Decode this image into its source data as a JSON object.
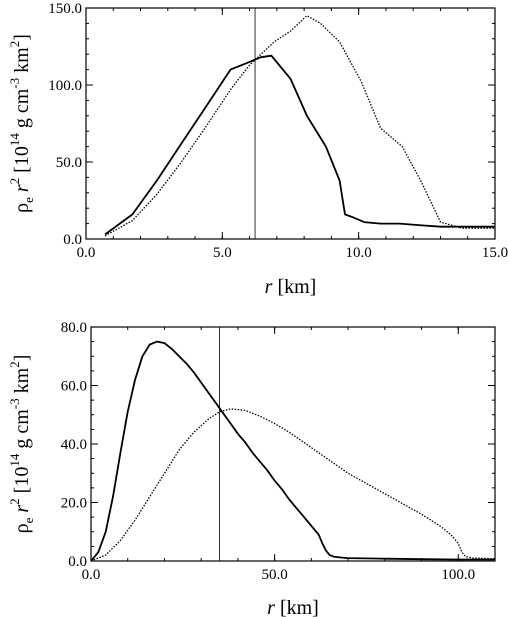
{
  "chart_data": [
    {
      "type": "line",
      "xlabel_italic": "r",
      "xlabel_rest": " [km]",
      "ylabel": {
        "rho": "ρ",
        "sub_e": "e",
        "r": " r",
        "sup2": "2",
        "open": " [10",
        "sup14": "14",
        "gcm": " g cm",
        "supm3": "-3",
        "km": " km",
        "close": "]"
      },
      "xlim": [
        0,
        15
      ],
      "ylim": [
        0,
        150
      ],
      "xticks": [
        {
          "v": 0,
          "label": "0.0"
        },
        {
          "v": 5,
          "label": "5.0"
        },
        {
          "v": 10,
          "label": "10.0"
        },
        {
          "v": 15,
          "label": "15.0"
        }
      ],
      "yticks": [
        {
          "v": 0,
          "label": "0.0"
        },
        {
          "v": 50,
          "label": "50.0"
        },
        {
          "v": 100,
          "label": "100.0"
        },
        {
          "v": 150,
          "label": "150.0"
        }
      ],
      "xminor": 1,
      "yminor": 10,
      "vline": 6.2,
      "series": [
        {
          "style": "solid",
          "x": [
            0.7,
            1.7,
            2.6,
            3.5,
            4.4,
            5.3,
            6.0,
            6.4,
            6.8,
            7.5,
            8.1,
            8.8,
            9.3,
            9.5,
            9.8,
            10.2,
            10.8,
            11.5,
            12.2,
            13.0,
            14.0,
            15.0
          ],
          "y": [
            3,
            16,
            38,
            62,
            86,
            110,
            115,
            118,
            119,
            104,
            80,
            60,
            38,
            16,
            14,
            11,
            10,
            10,
            9,
            8,
            8,
            8
          ]
        },
        {
          "style": "dotted",
          "x": [
            0.7,
            1.7,
            2.6,
            3.5,
            4.4,
            5.3,
            6.0,
            6.9,
            7.5,
            8.1,
            8.6,
            9.3,
            10.1,
            10.8,
            11.6,
            12.3,
            13.0,
            13.8,
            15.0
          ],
          "y": [
            2,
            12,
            29,
            50,
            73,
            97,
            113,
            128,
            135,
            145,
            140,
            128,
            102,
            72,
            60,
            37,
            11,
            7,
            7
          ]
        }
      ]
    },
    {
      "type": "line",
      "xlabel_italic": "r",
      "xlabel_rest": " [km]",
      "ylabel": {
        "rho": "ρ",
        "sub_e": "e",
        "r": " r",
        "sup2": "2",
        "open": " [10",
        "sup14": "14",
        "gcm": " g cm",
        "supm3": "-3",
        "km": " km",
        "close": "]"
      },
      "xlim": [
        0,
        110
      ],
      "ylim": [
        0,
        80
      ],
      "xticks": [
        {
          "v": 0,
          "label": "0.0"
        },
        {
          "v": 50,
          "label": "50.0"
        },
        {
          "v": 100,
          "label": "100.0"
        }
      ],
      "yticks": [
        {
          "v": 0,
          "label": "0.0"
        },
        {
          "v": 20,
          "label": "20.0"
        },
        {
          "v": 40,
          "label": "40.0"
        },
        {
          "v": 60,
          "label": "60.0"
        },
        {
          "v": 80,
          "label": "80.0"
        }
      ],
      "xminor": 10,
      "yminor": 5,
      "vline": 35,
      "series": [
        {
          "style": "solid",
          "x": [
            0,
            2,
            4,
            6,
            8,
            10,
            12,
            14,
            16,
            18,
            20,
            22,
            24,
            26,
            28,
            30,
            32,
            34,
            36,
            38,
            40,
            42,
            44,
            46,
            48,
            50,
            52,
            54,
            56,
            58,
            60,
            62,
            63,
            64,
            65,
            66,
            68,
            70,
            80,
            90,
            100,
            110
          ],
          "y": [
            0,
            3,
            10,
            22,
            37,
            51,
            62,
            70,
            74,
            75,
            74.5,
            72.5,
            70,
            67.5,
            64.5,
            61,
            57.5,
            54,
            50.5,
            47,
            43.5,
            40.5,
            37,
            34,
            31,
            27.5,
            24.5,
            21,
            18,
            15,
            12,
            9,
            6,
            3.5,
            2,
            1.5,
            1.2,
            1,
            0.8,
            0.6,
            0.5,
            0.5
          ]
        },
        {
          "style": "dotted",
          "x": [
            0,
            4,
            8,
            12,
            16,
            20,
            24,
            28,
            32,
            35,
            38,
            42,
            46,
            50,
            54,
            58,
            62,
            66,
            70,
            75,
            80,
            85,
            90,
            95,
            98,
            100,
            101,
            102,
            104,
            110
          ],
          "y": [
            0,
            2,
            7,
            14,
            22,
            30,
            38,
            44,
            48.5,
            51,
            52,
            51.5,
            49.5,
            47,
            44,
            40.5,
            37,
            33.5,
            30,
            26.5,
            23,
            19.5,
            16,
            12,
            9,
            6,
            3,
            1.5,
            1,
            0.8
          ]
        }
      ]
    }
  ]
}
